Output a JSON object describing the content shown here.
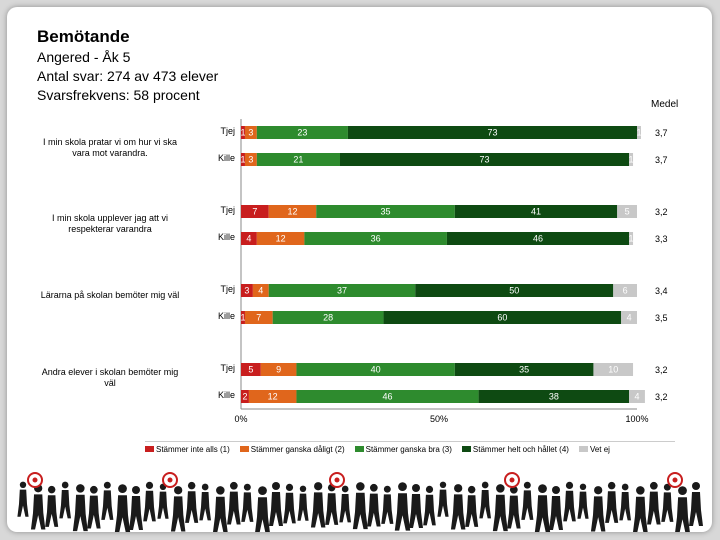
{
  "header": {
    "title": "Bemötande",
    "line1": "Angered - Åk 5",
    "line2": "Antal svar: 274 av 473 elever",
    "line3": "Svarsfrekvens: 58 procent"
  },
  "chart_data": {
    "type": "bar",
    "stacked": true,
    "orientation": "horizontal",
    "mean_header": "Medel",
    "x_ticks": [
      "0%",
      "50%",
      "100%"
    ],
    "xlim": [
      0,
      100
    ],
    "colors": [
      "#c81e1e",
      "#e0661c",
      "#2e8b2e",
      "#0e4a12",
      "#c8c8c8"
    ],
    "legend": [
      "Stämmer inte alls (1)",
      "Stämmer ganska dåligt (2)",
      "Stämmer ganska bra (3)",
      "Stämmer helt och hållet (4)",
      "Vet ej"
    ],
    "questions": [
      {
        "label": "I min skola pratar vi om hur vi ska vara mot varandra.",
        "rows": [
          {
            "group": "Tjej",
            "values": [
              1,
              3,
              23,
              73,
              1
            ],
            "labels": [
              "1",
              "3",
              "23",
              "73",
              "1"
            ],
            "mean": "3,7"
          },
          {
            "group": "Kille",
            "values": [
              1,
              3,
              21,
              73,
              1
            ],
            "labels": [
              "1",
              "3",
              "21",
              "73",
              "1"
            ],
            "mean": "3,7"
          }
        ]
      },
      {
        "label": "I min skola upplever jag att vi respekterar varandra",
        "rows": [
          {
            "group": "Tjej",
            "values": [
              7,
              12,
              35,
              41,
              5
            ],
            "labels": [
              "7",
              "12",
              "35",
              "41",
              "5"
            ],
            "mean": "3,2"
          },
          {
            "group": "Kille",
            "values": [
              4,
              12,
              36,
              46,
              1
            ],
            "labels": [
              "4",
              "12",
              "36",
              "46",
              "1"
            ],
            "mean": "3,3"
          }
        ]
      },
      {
        "label": "Lärarna på skolan bemöter mig väl",
        "rows": [
          {
            "group": "Tjej",
            "values": [
              3,
              4,
              37,
              50,
              6
            ],
            "labels": [
              "3",
              "4",
              "37",
              "50",
              "6"
            ],
            "mean": "3,4"
          },
          {
            "group": "Kille",
            "values": [
              1,
              7,
              28,
              60,
              4
            ],
            "labels": [
              "1",
              "7",
              "28",
              "60",
              "4"
            ],
            "mean": "3,5"
          }
        ]
      },
      {
        "label": "Andra elever i skolan bemöter mig väl",
        "rows": [
          {
            "group": "Tjej",
            "values": [
              5,
              9,
              40,
              35,
              10
            ],
            "labels": [
              "5",
              "9",
              "40",
              "35",
              "10"
            ],
            "mean": "3,2"
          },
          {
            "group": "Kille",
            "values": [
              2,
              12,
              46,
              38,
              4
            ],
            "labels": [
              "2",
              "12",
              "46",
              "38",
              "4"
            ],
            "mean": "3,2"
          }
        ]
      }
    ]
  }
}
